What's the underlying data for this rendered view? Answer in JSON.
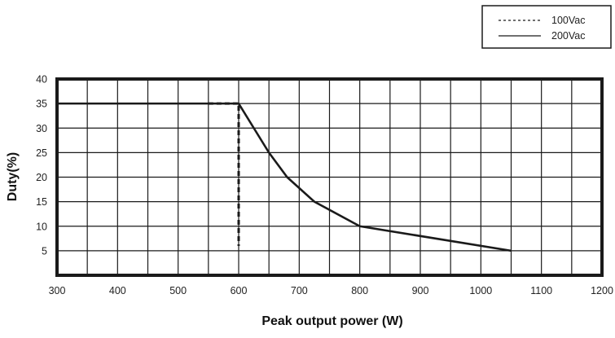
{
  "chart_data": {
    "type": "line",
    "title": "",
    "xlabel": "Peak output power (W)",
    "ylabel": "Duty(%)",
    "xlim": [
      300,
      1200
    ],
    "ylim": [
      0,
      40
    ],
    "x_ticks": [
      300,
      400,
      500,
      600,
      700,
      800,
      900,
      1000,
      1100,
      1200
    ],
    "y_ticks": [
      5,
      10,
      15,
      20,
      25,
      30,
      35,
      40
    ],
    "x_grid_step": 50,
    "y_grid_step": 5,
    "grid": true,
    "legend_position": "top-right",
    "series": [
      {
        "name": "100Vac",
        "style": "dashed",
        "x": [
          550,
          600,
          600
        ],
        "y": [
          35,
          35,
          6
        ]
      },
      {
        "name": "200Vac",
        "style": "solid",
        "x": [
          300,
          600,
          625,
          650,
          680,
          725,
          800,
          1050
        ],
        "y": [
          35,
          35,
          30,
          25,
          20,
          15,
          10,
          5
        ]
      }
    ]
  },
  "legend": {
    "items": [
      {
        "label": "100Vac",
        "style": "dashed"
      },
      {
        "label": "200Vac",
        "style": "solid"
      }
    ]
  },
  "colors": {
    "line": "#1a1a1a",
    "grid": "#1a1a1a",
    "frame": "#1a1a1a",
    "background": "#ffffff"
  }
}
